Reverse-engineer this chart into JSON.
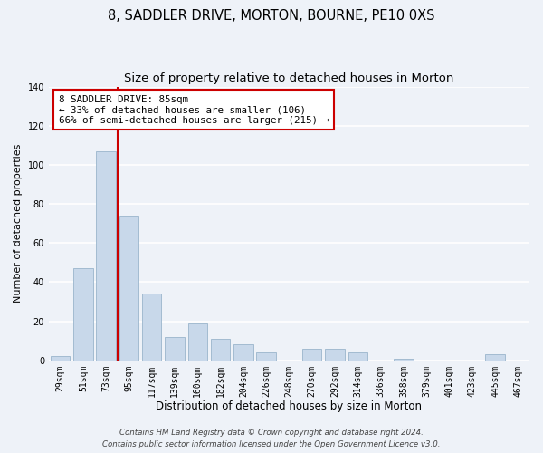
{
  "title": "8, SADDLER DRIVE, MORTON, BOURNE, PE10 0XS",
  "subtitle": "Size of property relative to detached houses in Morton",
  "xlabel": "Distribution of detached houses by size in Morton",
  "ylabel": "Number of detached properties",
  "bar_color": "#c8d8ea",
  "bar_edgecolor": "#9ab5cc",
  "bar_linewidth": 0.6,
  "categories": [
    "29sqm",
    "51sqm",
    "73sqm",
    "95sqm",
    "117sqm",
    "139sqm",
    "160sqm",
    "182sqm",
    "204sqm",
    "226sqm",
    "248sqm",
    "270sqm",
    "292sqm",
    "314sqm",
    "336sqm",
    "358sqm",
    "379sqm",
    "401sqm",
    "423sqm",
    "445sqm",
    "467sqm"
  ],
  "values": [
    2,
    47,
    107,
    74,
    34,
    12,
    19,
    11,
    8,
    4,
    0,
    6,
    6,
    4,
    0,
    1,
    0,
    0,
    0,
    3,
    0
  ],
  "ylim": [
    0,
    140
  ],
  "yticks": [
    0,
    20,
    40,
    60,
    80,
    100,
    120,
    140
  ],
  "vline_x_index": 2.5,
  "vline_color": "#cc0000",
  "annotation_title": "8 SADDLER DRIVE: 85sqm",
  "annotation_line1": "← 33% of detached houses are smaller (106)",
  "annotation_line2": "66% of semi-detached houses are larger (215) →",
  "annotation_box_facecolor": "#ffffff",
  "annotation_box_edgecolor": "#cc0000",
  "footer1": "Contains HM Land Registry data © Crown copyright and database right 2024.",
  "footer2": "Contains public sector information licensed under the Open Government Licence v3.0.",
  "background_color": "#eef2f8",
  "plot_background": "#eef2f8",
  "grid_color": "#ffffff",
  "title_fontsize": 10.5,
  "subtitle_fontsize": 9.5,
  "ylabel_fontsize": 8,
  "xlabel_fontsize": 8.5,
  "tick_fontsize": 7,
  "annotation_fontsize": 7.8,
  "footer_fontsize": 6.2
}
